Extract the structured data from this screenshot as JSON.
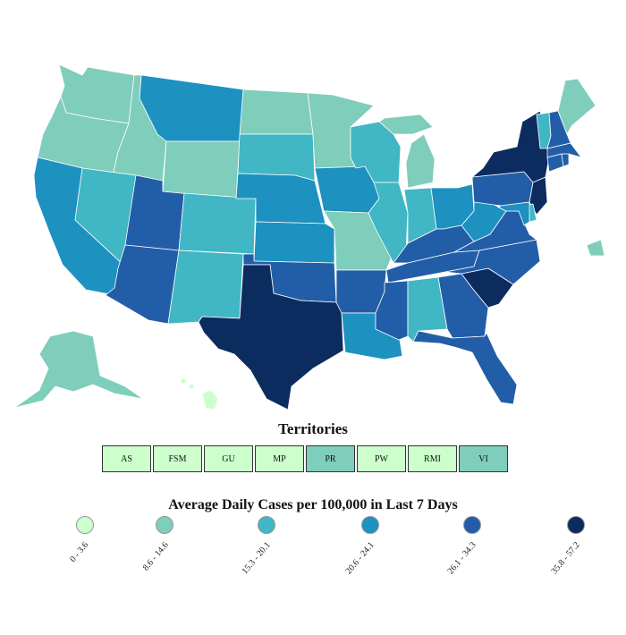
{
  "legend": {
    "title": "Average Daily Cases per 100,000 in Last 7 Days",
    "bins": [
      {
        "label": "0 - 3.6",
        "color": "#ccffcc"
      },
      {
        "label": "8.6 - 14.6",
        "color": "#7fcdbb"
      },
      {
        "label": "15.3 - 20.1",
        "color": "#41b6c4"
      },
      {
        "label": "20.6 - 24.1",
        "color": "#1d91c0"
      },
      {
        "label": "26.1 - 34.3",
        "color": "#225ea8"
      },
      {
        "label": "35.8 - 57.2",
        "color": "#0c2c5f"
      }
    ]
  },
  "territories": {
    "title": "Territories",
    "items": [
      {
        "label": "AS",
        "bin": 0
      },
      {
        "label": "FSM",
        "bin": 0
      },
      {
        "label": "GU",
        "bin": 0
      },
      {
        "label": "MP",
        "bin": 0
      },
      {
        "label": "PR",
        "bin": 1
      },
      {
        "label": "PW",
        "bin": 0
      },
      {
        "label": "RMI",
        "bin": 0
      },
      {
        "label": "VI",
        "bin": 1
      }
    ]
  },
  "states": {
    "WA": 1,
    "OR": 1,
    "CA": 3,
    "ID": 1,
    "NV": 2,
    "UT": 4,
    "AZ": 4,
    "MT": 3,
    "WY": 1,
    "CO": 2,
    "NM": 2,
    "ND": 1,
    "SD": 2,
    "NE": 3,
    "KS": 3,
    "OK": 4,
    "TX": 5,
    "MN": 1,
    "IA": 3,
    "MO": 1,
    "AR": 4,
    "LA": 3,
    "WI": 2,
    "IL": 2,
    "MI": 1,
    "IN": 2,
    "OH": 3,
    "KY": 4,
    "TN": 4,
    "MS": 4,
    "AL": 2,
    "GA": 4,
    "FL": 4,
    "SC": 5,
    "NC": 4,
    "VA": 4,
    "WV": 3,
    "PA": 4,
    "NY": 5,
    "NJ": 5,
    "DE": 2,
    "MD": 3,
    "CT": 4,
    "RI": 4,
    "MA": 4,
    "VT": 2,
    "NH": 4,
    "ME": 1,
    "AK": 1,
    "HI": 0
  }
}
